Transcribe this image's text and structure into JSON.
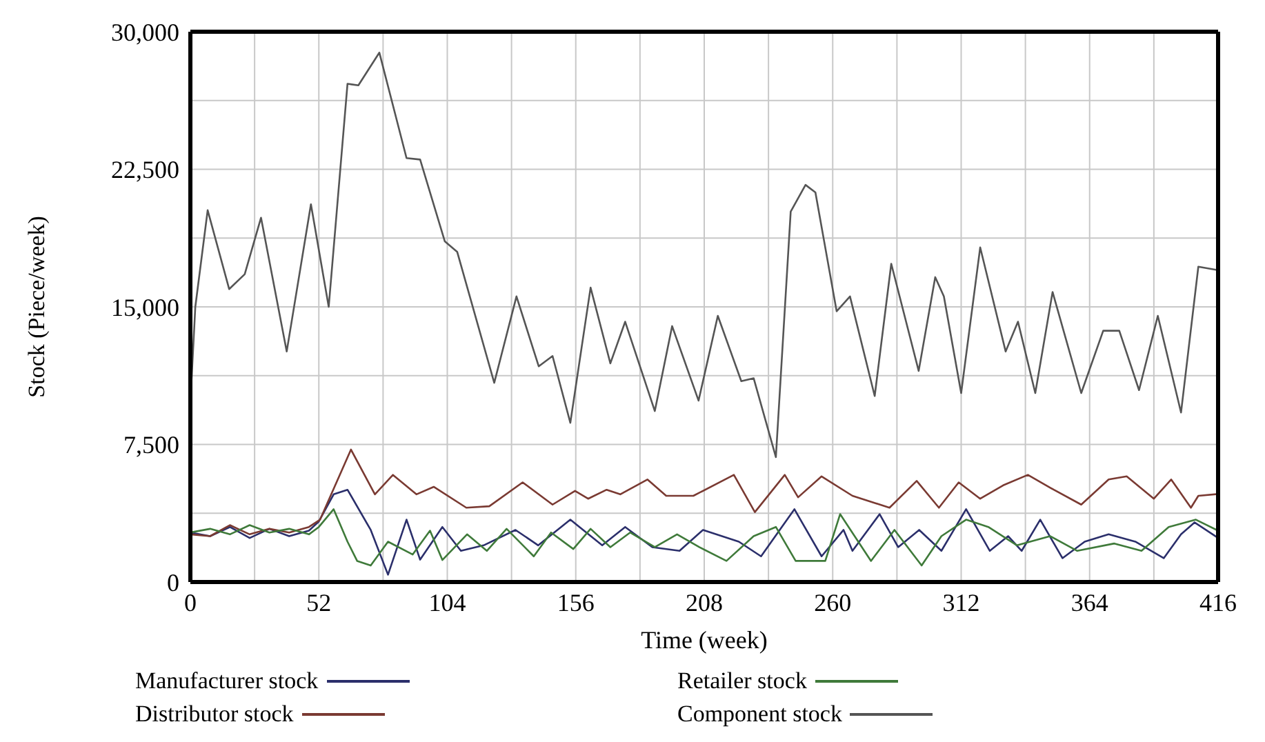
{
  "chart_data": {
    "type": "line",
    "xlabel": "Time (week)",
    "ylabel": "Stock (Piece/week)",
    "xlim": [
      0,
      416
    ],
    "ylim": [
      0,
      30000
    ],
    "xticks": [
      0,
      {
        "value": 26,
        "label": null
      },
      52,
      {
        "value": 78,
        "label": null
      },
      104,
      {
        "value": 130,
        "label": null
      },
      156,
      {
        "value": 182,
        "label": null
      },
      208,
      {
        "value": 234,
        "label": null
      },
      260,
      {
        "value": 286,
        "label": null
      },
      312,
      {
        "value": 338,
        "label": null
      },
      364,
      {
        "value": 390,
        "label": null
      },
      416
    ],
    "yticks": [
      0,
      {
        "value": 3750,
        "label": null
      },
      {
        "value": 7500,
        "label": "7,500"
      },
      {
        "value": 11250,
        "label": null
      },
      {
        "value": 15000,
        "label": "15,000"
      },
      {
        "value": 18750,
        "label": null
      },
      {
        "value": 22500,
        "label": "22,500"
      },
      {
        "value": 26250,
        "label": null
      },
      {
        "value": 30000,
        "label": "30,000"
      }
    ],
    "grid": true,
    "legend": "bottom",
    "series": [
      {
        "name": "Manufacturer stock",
        "color": "#2b2f6b",
        "x": [
          0,
          8,
          16,
          24,
          32,
          40,
          48,
          52,
          58,
          63.6,
          73,
          80,
          87.5,
          93,
          102,
          109.5,
          118.7,
          131.6,
          140.8,
          153.8,
          166.7,
          176,
          187,
          198,
          207.5,
          222,
          231,
          244.5,
          255.5,
          264.4,
          268,
          279,
          286.5,
          295,
          304,
          314,
          323.6,
          331,
          336.5,
          344,
          353,
          362,
          371.7,
          382.5,
          394,
          401,
          406.5,
          416
        ],
        "values": [
          2700,
          2500,
          3000,
          2400,
          2900,
          2500,
          2800,
          3300,
          4780,
          5030,
          2840,
          400,
          3400,
          1220,
          3000,
          1700,
          2000,
          2840,
          2000,
          3400,
          2000,
          3000,
          1900,
          1700,
          2840,
          2200,
          1400,
          3970,
          1400,
          2840,
          1700,
          3700,
          1900,
          2840,
          1700,
          3970,
          1700,
          2500,
          1700,
          3400,
          1300,
          2200,
          2600,
          2200,
          1300,
          2600,
          3250,
          2400
        ]
      },
      {
        "name": "Distributor stock",
        "color": "#7a3a32",
        "x": [
          0,
          8,
          16,
          24,
          32,
          40,
          48,
          52.5,
          65,
          74.7,
          82,
          91.5,
          98.5,
          111.7,
          121,
          134.5,
          146.6,
          155.7,
          161,
          168.5,
          174,
          185,
          192.6,
          203.6,
          220,
          228.5,
          240.6,
          246,
          255.5,
          268,
          283,
          294,
          303,
          311,
          319.7,
          329,
          339,
          349.5,
          360.6,
          371.7,
          379,
          390,
          397,
          405,
          408,
          416
        ],
        "values": [
          2600,
          2500,
          3100,
          2600,
          2900,
          2700,
          3000,
          3400,
          7220,
          4780,
          5840,
          4780,
          5190,
          4050,
          4130,
          5430,
          4220,
          4970,
          4540,
          5030,
          4780,
          5590,
          4700,
          4700,
          5840,
          3810,
          5840,
          4620,
          5760,
          4700,
          4050,
          5510,
          4050,
          5430,
          4540,
          5270,
          5840,
          5030,
          4220,
          5590,
          5760,
          4540,
          5590,
          4050,
          4700,
          4800
        ]
      },
      {
        "name": "Retailer stock",
        "color": "#3f7a3a",
        "x": [
          0,
          8,
          16,
          24,
          32,
          40,
          48,
          52,
          58,
          63.6,
          67.5,
          73,
          80,
          90,
          97,
          102,
          112,
          120,
          128,
          139,
          146,
          155,
          162,
          170,
          178,
          188,
          197,
          206,
          217,
          228,
          237,
          245,
          257,
          263,
          275.5,
          285,
          296,
          304,
          314,
          323,
          334.6,
          348,
          359,
          374,
          385,
          396,
          407,
          416
        ],
        "values": [
          2700,
          2900,
          2600,
          3100,
          2700,
          2900,
          2600,
          3000,
          3970,
          2200,
          1150,
          900,
          2200,
          1500,
          2800,
          1200,
          2600,
          1700,
          2900,
          1400,
          2700,
          1800,
          2900,
          1900,
          2700,
          1900,
          2600,
          1900,
          1150,
          2500,
          3000,
          1150,
          1150,
          3700,
          1150,
          2840,
          900,
          2500,
          3400,
          3000,
          2000,
          2500,
          1700,
          2100,
          1700,
          3000,
          3400,
          2800
        ]
      },
      {
        "name": "Component stock",
        "color": "#555555",
        "x": [
          0,
          2,
          7,
          15.7,
          22,
          28.6,
          39,
          48.8,
          56,
          63.6,
          68,
          76.5,
          87.5,
          93,
          103,
          108,
          123,
          132,
          141,
          146.6,
          153.8,
          162,
          170,
          176,
          188,
          195,
          205.7,
          213.5,
          223,
          228,
          237,
          243,
          249,
          253,
          261.6,
          267,
          277,
          283.7,
          294.8,
          301.5,
          305,
          312,
          319.7,
          330,
          335,
          342,
          349,
          360.6,
          369.5,
          376,
          384,
          391.6,
          401,
          408,
          416
        ],
        "values": [
          9800,
          15000,
          20270,
          15970,
          16780,
          19860,
          12570,
          20590,
          15000,
          27160,
          27080,
          28860,
          23110,
          23030,
          18570,
          18000,
          10860,
          15570,
          11760,
          12320,
          8680,
          16050,
          11920,
          14190,
          9320,
          13950,
          9890,
          14510,
          10950,
          11110,
          6810,
          20190,
          21650,
          21240,
          14760,
          15570,
          10140,
          17350,
          11510,
          16620,
          15570,
          10300,
          18240,
          12570,
          14190,
          10300,
          15810,
          10300,
          13700,
          13700,
          10460,
          14510,
          9240,
          17190,
          17000
        ]
      }
    ]
  }
}
